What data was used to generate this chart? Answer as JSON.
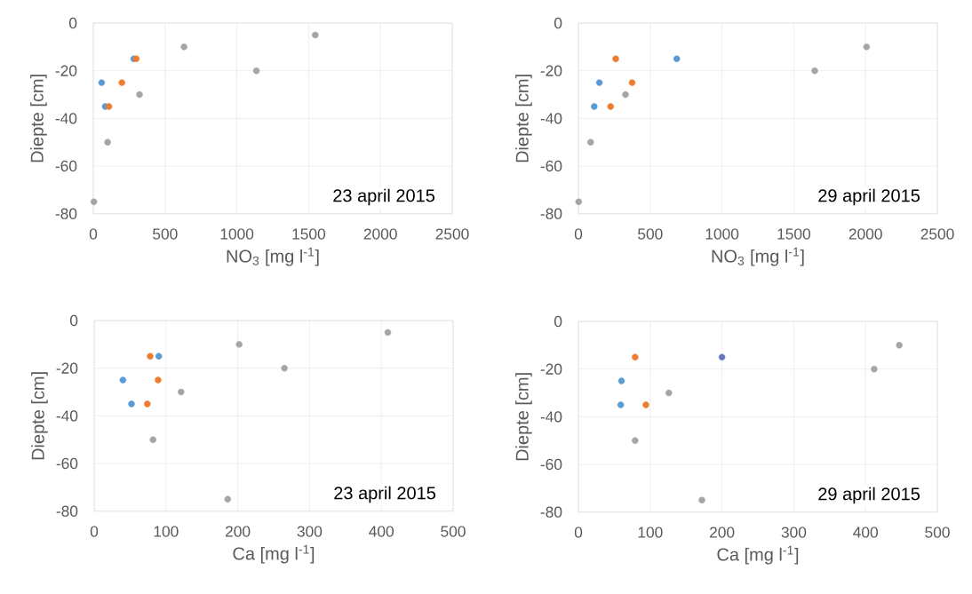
{
  "chart_data": [
    {
      "type": "scatter",
      "xlabel": "NO$_{3}$ [mg l$^{-1}$]",
      "ylabel": "Diepte [cm]",
      "annotations": [
        "23 april 2015"
      ],
      "xlim": [
        0,
        2500
      ],
      "xticks": [
        0,
        500,
        1000,
        1500,
        2000,
        2500
      ],
      "ylim": [
        -80,
        0
      ],
      "yticks": [
        -80,
        -60,
        -40,
        -20,
        0
      ],
      "grid": true,
      "marker": "circle",
      "series": [
        {
          "color": "#a5a5a5",
          "x": [
            1546,
            632,
            1136,
            322,
            100,
            4
          ],
          "values": [
            -5,
            -10,
            -20,
            -30,
            -50,
            -75
          ]
        },
        {
          "color": "#5b9bd5",
          "x": [
            282,
            58,
            83
          ],
          "values": [
            -15,
            -25,
            -35
          ]
        },
        {
          "color": "#ed7d31",
          "x": [
            299,
            199,
            109
          ],
          "values": [
            -15,
            -25,
            -35
          ]
        }
      ]
    },
    {
      "type": "scatter",
      "xlabel": "NO$_{3}$ [mg l$^{-1}$]",
      "ylabel": "Diepte [cm]",
      "annotations": [
        "29 april 2015"
      ],
      "xlim": [
        0,
        2500
      ],
      "xticks": [
        0,
        500,
        1000,
        1500,
        2000,
        2500
      ],
      "ylim": [
        -80,
        0
      ],
      "yticks": [
        -80,
        -60,
        -40,
        -20,
        0
      ],
      "grid": true,
      "marker": "circle",
      "series": [
        {
          "color": "#a5a5a5",
          "x": [
            2007,
            1646,
            328,
            85,
            2
          ],
          "values": [
            -10,
            -20,
            -30,
            -50,
            -75
          ]
        },
        {
          "color": "#5b9bd5",
          "x": [
            685,
            146,
            110
          ],
          "values": [
            -15,
            -25,
            -35
          ]
        },
        {
          "color": "#ed7d31",
          "x": [
            260,
            374,
            224
          ],
          "values": [
            -15,
            -25,
            -35
          ]
        }
      ]
    },
    {
      "type": "scatter",
      "xlabel": "Ca [mg l$^{-1}$]",
      "ylabel": "Diepte [cm]",
      "annotations": [
        "23 april 2015"
      ],
      "xlim": [
        0,
        500
      ],
      "xticks": [
        0,
        100,
        200,
        300,
        400,
        500
      ],
      "ylim": [
        -80,
        0
      ],
      "yticks": [
        -80,
        -60,
        -40,
        -20,
        0
      ],
      "grid": true,
      "marker": "circle",
      "series": [
        {
          "color": "#a5a5a5",
          "x": [
            409,
            202,
            265,
            121,
            82,
            186
          ],
          "values": [
            -5,
            -10,
            -20,
            -30,
            -50,
            -75
          ]
        },
        {
          "color": "#5b9bd5",
          "x": [
            90,
            40,
            52
          ],
          "values": [
            -15,
            -25,
            -35
          ]
        },
        {
          "color": "#ed7d31",
          "x": [
            78,
            89,
            74
          ],
          "values": [
            -15,
            -25,
            -35
          ]
        }
      ]
    },
    {
      "type": "scatter",
      "xlabel": "Ca [mg l$^{-1}$]",
      "ylabel": "Diepte [cm]",
      "annotations": [
        "29 april 2015"
      ],
      "xlim": [
        0,
        500
      ],
      "xticks": [
        0,
        100,
        200,
        300,
        400,
        500
      ],
      "ylim": [
        -80,
        0
      ],
      "yticks": [
        -80,
        -60,
        -40,
        -20,
        0
      ],
      "grid": true,
      "marker": "circle",
      "series": [
        {
          "color": "#a5a5a5",
          "x": [
            447,
            412,
            126,
            79,
            172
          ],
          "values": [
            -10,
            -20,
            -30,
            -50,
            -75
          ]
        },
        {
          "color": "#5b9bd5",
          "colors": [
            "#7072b8",
            "#5b9bd5",
            "#5b9bd5"
          ],
          "x": [
            200,
            60,
            59
          ],
          "values": [
            -15,
            -25,
            -35
          ]
        },
        {
          "color": "#ed7d31",
          "x": [
            79,
            94
          ],
          "values": [
            -15,
            -35
          ]
        }
      ]
    }
  ]
}
